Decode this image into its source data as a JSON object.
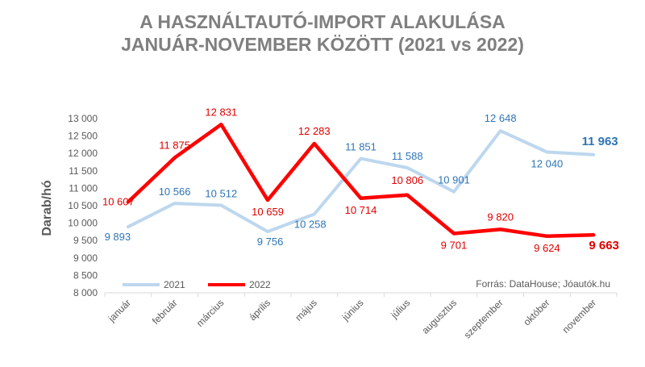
{
  "chart_data": {
    "type": "line",
    "title": [
      "A HASZNÁLTAUTÓ-IMPORT ALAKULÁSA",
      "JANUÁR-NOVEMBER KÖZÖTT (2021 vs 2022)"
    ],
    "ylabel": "Darab/hó",
    "ylim": [
      8000,
      13000
    ],
    "yticks": [
      8000,
      8500,
      9000,
      9500,
      10000,
      10500,
      11000,
      11500,
      12000,
      12500,
      13000
    ],
    "ytick_labels": [
      "8 000",
      "8 500",
      "9 000",
      "9 500",
      "10 000",
      "10 500",
      "11 000",
      "11 500",
      "12 000",
      "12 500",
      "13 000"
    ],
    "grid": false,
    "legend": "bottom-left",
    "categories": [
      "január",
      "február",
      "március",
      "április",
      "május",
      "június",
      "július",
      "augusztus",
      "szeptember",
      "október",
      "november"
    ],
    "series": [
      {
        "name": "2021",
        "color": "#bdd7ee",
        "label_color": "#2e75b6",
        "values": [
          9893,
          10566,
          10512,
          9756,
          10258,
          11851,
          11588,
          10901,
          12648,
          12040,
          11963
        ],
        "labels": [
          "9 893",
          "10 566",
          "10 512",
          "9 756",
          "10 258",
          "11 851",
          "11 588",
          "10 901",
          "12 648",
          "12 040",
          "11 963"
        ]
      },
      {
        "name": "2022",
        "color": "#ff0000",
        "label_color": "#e00000",
        "values": [
          10607,
          11875,
          12831,
          10659,
          12283,
          10714,
          10806,
          9701,
          9820,
          9624,
          9663
        ],
        "labels": [
          "10 607",
          "11 875",
          "12 831",
          "10 659",
          "12 283",
          "10 714",
          "10 806",
          "9 701",
          "9 820",
          "9 624",
          "9 663"
        ]
      }
    ],
    "source_note": "Forrás: DataHouse; Jóautók.hu"
  }
}
